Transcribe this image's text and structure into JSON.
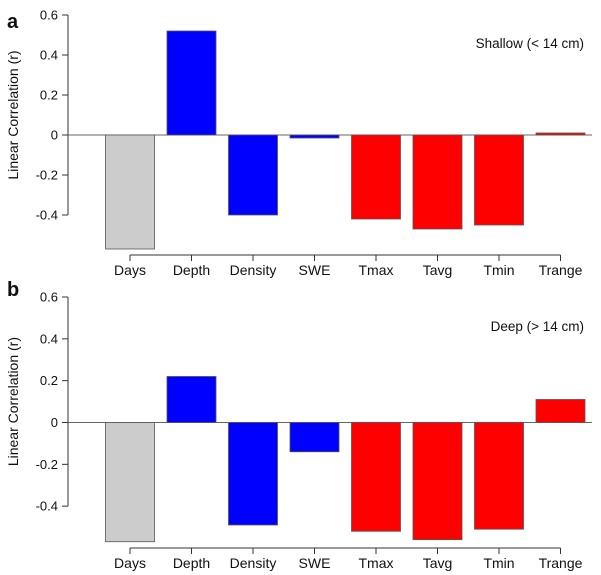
{
  "chart_data": [
    {
      "type": "bar",
      "panel_label": "a",
      "annotation": "Shallow (< 14 cm)",
      "ylabel": "Linear Correlation (r)",
      "ylim": [
        -0.6,
        0.6
      ],
      "yticks": [
        0.6,
        0.4,
        0.2,
        0,
        -0.2,
        -0.4
      ],
      "ytick_labels": [
        "0.6",
        "0.4",
        "0.2",
        "0",
        "-0.2",
        "-0.4"
      ],
      "categories": [
        "Days",
        "Depth",
        "Density",
        "SWE",
        "Tmax",
        "Tavg",
        "Tmin",
        "Trange"
      ],
      "values": [
        -0.57,
        0.52,
        -0.4,
        -0.015,
        -0.42,
        -0.47,
        -0.45,
        0.01
      ],
      "colors": [
        "#cccccc",
        "#0000ff",
        "#0000ff",
        "#0000ff",
        "#ff0000",
        "#ff0000",
        "#ff0000",
        "#ff0000"
      ]
    },
    {
      "type": "bar",
      "panel_label": "b",
      "annotation": "Deep (> 14 cm)",
      "ylabel": "Linear Correlation (r)",
      "ylim": [
        -0.6,
        0.6
      ],
      "yticks": [
        0.6,
        0.4,
        0.2,
        0,
        -0.2,
        -0.4
      ],
      "ytick_labels": [
        "0.6",
        "0.4",
        "0.2",
        "0",
        "-0.2",
        "-0.4"
      ],
      "categories": [
        "Days",
        "Depth",
        "Density",
        "SWE",
        "Tmax",
        "Tavg",
        "Tmin",
        "Trange"
      ],
      "values": [
        -0.57,
        0.22,
        -0.49,
        -0.14,
        -0.52,
        -0.56,
        -0.51,
        0.11
      ],
      "colors": [
        "#cccccc",
        "#0000ff",
        "#0000ff",
        "#0000ff",
        "#ff0000",
        "#ff0000",
        "#ff0000",
        "#ff0000"
      ]
    }
  ]
}
